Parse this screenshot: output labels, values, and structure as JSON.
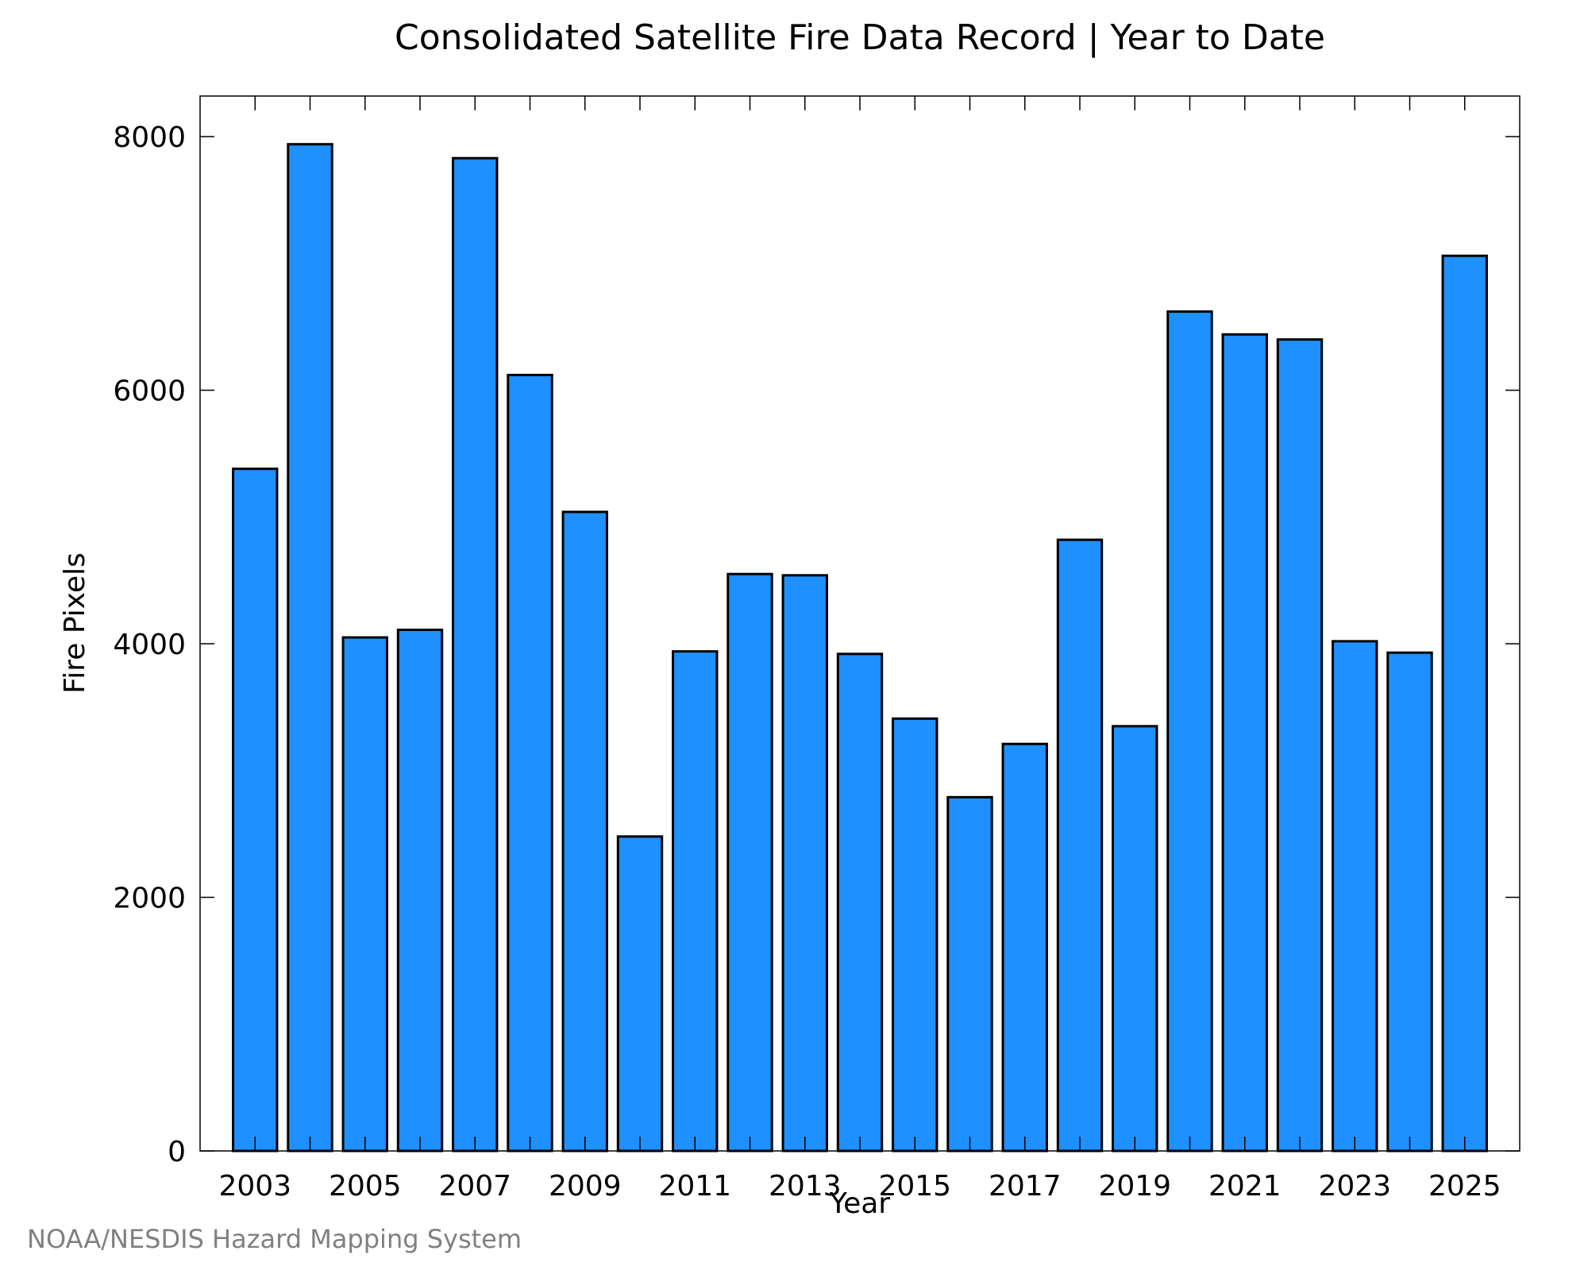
{
  "chart_data": {
    "type": "bar",
    "title": "Consolidated Satellite Fire Data Record | Year to Date",
    "xlabel": "Year",
    "ylabel": "Fire Pixels",
    "categories": [
      "2003",
      "2004",
      "2005",
      "2006",
      "2007",
      "2008",
      "2009",
      "2010",
      "2011",
      "2012",
      "2013",
      "2014",
      "2015",
      "2016",
      "2017",
      "2018",
      "2019",
      "2020",
      "2021",
      "2022",
      "2023",
      "2024",
      "2025"
    ],
    "values": [
      5380,
      7940,
      4050,
      4110,
      7830,
      6120,
      5040,
      2480,
      3940,
      4550,
      4540,
      3920,
      3410,
      2790,
      3210,
      4820,
      3350,
      6620,
      6440,
      6400,
      4020,
      3930,
      7060
    ],
    "x_tick_labels": [
      "2003",
      "2005",
      "2007",
      "2009",
      "2011",
      "2013",
      "2015",
      "2017",
      "2019",
      "2021",
      "2023",
      "2025"
    ],
    "y_ticks": [
      0,
      2000,
      4000,
      6000,
      8000
    ],
    "ylim": [
      0,
      8320
    ],
    "grid": false,
    "bar_color": "#1e90ff"
  },
  "credit": "NOAA/NESDIS Hazard Mapping System"
}
